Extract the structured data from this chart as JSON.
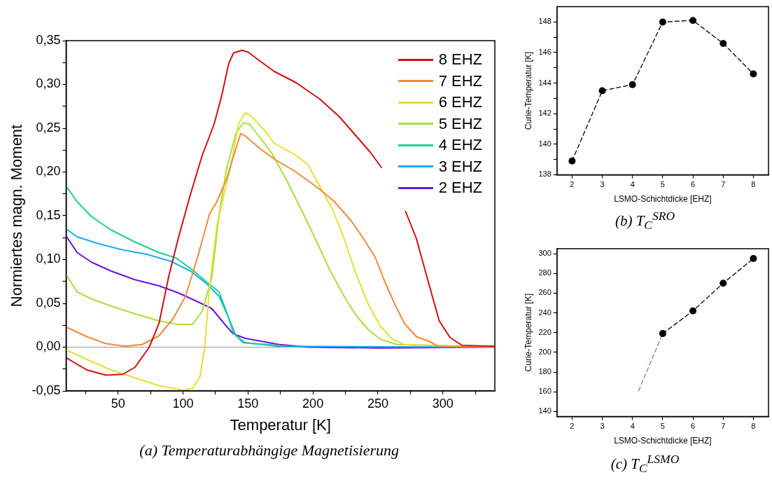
{
  "chart_data": [
    {
      "type": "line",
      "title": "(a) Temperaturabhängige Magnetisierung",
      "xlabel": "Temperatur [K]",
      "ylabel": "Normiertes magn. Moment",
      "legend": "top right",
      "marker": "none",
      "grid": false,
      "xlim": [
        10,
        340
      ],
      "xticks": [
        {
          "value": 25,
          "label": null
        },
        50,
        {
          "value": 75,
          "label": null
        },
        100,
        {
          "value": 125,
          "label": null
        },
        150,
        {
          "value": 175,
          "label": null
        },
        200,
        {
          "value": 225,
          "label": null
        },
        250,
        {
          "value": 275,
          "label": null
        },
        300,
        {
          "value": 325,
          "label": null
        }
      ],
      "ylim": [
        -0.05,
        0.35
      ],
      "yticks": [
        {
          "value": -0.05,
          "label": "-0,05"
        },
        {
          "value": -0.025,
          "label": null
        },
        {
          "value": 0,
          "label": "0,00"
        },
        {
          "value": 0.025,
          "label": null
        },
        {
          "value": 0.05,
          "label": "0,05"
        },
        {
          "value": 0.075,
          "label": null
        },
        {
          "value": 0.1,
          "label": "0,10"
        },
        {
          "value": 0.125,
          "label": null
        },
        {
          "value": 0.15,
          "label": "0,15"
        },
        {
          "value": 0.175,
          "label": null
        },
        {
          "value": 0.2,
          "label": "0,20"
        },
        {
          "value": 0.225,
          "label": null
        },
        {
          "value": 0.25,
          "label": "0,25"
        },
        {
          "value": 0.275,
          "label": null
        },
        {
          "value": 0.3,
          "label": "0,30"
        },
        {
          "value": 0.325,
          "label": null
        },
        {
          "value": 0.35,
          "label": "0,35"
        }
      ],
      "ref_lines": [
        {
          "axis": "y",
          "value": 0,
          "color": "#999999"
        }
      ],
      "series": [
        {
          "name": "8 EHZ",
          "color": "#d40f0f",
          "x": [
            10,
            25.9,
            40.7,
            53.7,
            63,
            74,
            81.5,
            88.9,
            96.3,
            105.6,
            114.8,
            124,
            129.6,
            135.2,
            138.9,
            145.4,
            150,
            159,
            170,
            187,
            205.5,
            220.4,
            233.3,
            244.4,
            252.8,
            262,
            271.3,
            279.6,
            288.9,
            297.2,
            305.5,
            314.8,
            340
          ],
          "values": [
            -0.012,
            -0.026,
            -0.032,
            -0.031,
            -0.023,
            0,
            0.027,
            0.08,
            0.124,
            0.174,
            0.219,
            0.255,
            0.286,
            0.324,
            0.336,
            0.339,
            0.337,
            0.327,
            0.315,
            0.302,
            0.283,
            0.263,
            0.241,
            0.222,
            0.205,
            null,
            0.155,
            0.124,
            0.074,
            0.03,
            0.011,
            0.002,
            0.001
          ]
        },
        {
          "name": "7 EHZ",
          "color": "#f5883a",
          "x": [
            10,
            25.9,
            40.7,
            55.6,
            68.5,
            81.5,
            92.6,
            101.9,
            111.1,
            120.4,
            126,
            133.3,
            140.7,
            144.4,
            148,
            159,
            170,
            187,
            205.5,
            216.6,
            229.6,
            238.9,
            248.1,
            255.5,
            263,
            270.4,
            279.6,
            288.9,
            296.3,
            340
          ],
          "values": [
            0.023,
            0.012,
            0.004,
            0.001,
            0.003,
            0.013,
            0.033,
            0.058,
            0.102,
            0.152,
            0.166,
            0.191,
            0.227,
            0.244,
            0.241,
            0.227,
            0.215,
            0.2,
            0.18,
            0.166,
            0.144,
            0.124,
            0.102,
            0.074,
            0.049,
            0.027,
            0.012,
            0.007,
            0.001,
            0
          ]
        },
        {
          "name": "6 EHZ",
          "color": "#e6e02e",
          "x": [
            10,
            25.9,
            44.4,
            63,
            81.5,
            100,
            107.4,
            113,
            116.7,
            120.4,
            126,
            131.5,
            137,
            142.6,
            148.1,
            153.7,
            164.8,
            170,
            187,
            196.3,
            205.5,
            214.8,
            224,
            233.3,
            242.6,
            251.8,
            261.1,
            270.4,
            340
          ],
          "values": [
            -0.003,
            -0.014,
            -0.026,
            -0.035,
            -0.044,
            -0.049,
            -0.047,
            -0.034,
            0,
            0.069,
            0.138,
            0.174,
            0.208,
            0.255,
            0.268,
            0.262,
            0.244,
            0.233,
            0.219,
            0.208,
            0.183,
            0.158,
            0.124,
            0.083,
            0.049,
            0.024,
            0.009,
            0.003,
            0
          ]
        },
        {
          "name": "5 EHZ",
          "color": "#a6e03a",
          "x": [
            10,
            18.5,
            29.6,
            44.4,
            63,
            81.5,
            96.3,
            107.4,
            114.8,
            122.2,
            127.8,
            133.3,
            140.7,
            146.3,
            150.9,
            161,
            168.5,
            179.6,
            190.7,
            201.8,
            213,
            224,
            233.3,
            242.6,
            251.8,
            264.8,
            340
          ],
          "values": [
            0.083,
            0.063,
            0.055,
            0.047,
            0.038,
            0.03,
            0.026,
            0.026,
            0.041,
            0.08,
            0.152,
            0.202,
            0.244,
            0.256,
            0.255,
            0.236,
            0.221,
            0.191,
            0.158,
            0.124,
            0.088,
            0.058,
            0.036,
            0.02,
            0.009,
            0.003,
            0
          ]
        },
        {
          "name": "4 EHZ",
          "color": "#1ad38e",
          "x": [
            10,
            18.5,
            29.6,
            44.4,
            63,
            81.5,
            94.4,
            107.4,
            118.5,
            127.8,
            133.3,
            138.9,
            146.3,
            174
          ],
          "values": [
            0.184,
            0.166,
            0.149,
            0.134,
            0.12,
            0.108,
            0.102,
            0.088,
            0.074,
            0.063,
            0.041,
            0.016,
            0.005,
            0.002
          ]
        },
        {
          "name": "3 EHZ",
          "color": "#18aef0",
          "x": [
            10,
            18.5,
            35.2,
            53.7,
            72.2,
            90.7,
            105.6,
            118.5,
            127.8,
            135.2,
            140.7,
            148,
            174,
            340
          ],
          "values": [
            0.135,
            0.126,
            0.118,
            0.111,
            0.106,
            0.098,
            0.087,
            0.072,
            0.058,
            0.033,
            0.013,
            0.005,
            0.001,
            0
          ]
        },
        {
          "name": "2 EHZ",
          "color": "#7012e0",
          "x": [
            10,
            18.5,
            29.6,
            44.4,
            63,
            81.5,
            96.3,
            111.1,
            122.2,
            133.3,
            138.9,
            148,
            174,
            196,
            250,
            340
          ],
          "values": [
            0.127,
            0.108,
            0.097,
            0.087,
            0.077,
            0.07,
            0.062,
            0.052,
            0.044,
            0.024,
            0.015,
            0.01,
            0.003,
            0,
            -0.001,
            0
          ]
        }
      ]
    },
    {
      "type": "line",
      "title": "(b) T$_{C}$$^{SRO}$",
      "xlabel": "LSMO-Schichtdicke [EHZ]",
      "ylabel": "Curie-Temperatur [K]",
      "marker": "circle",
      "line_style": "dashed",
      "xlim": [
        1.5,
        8.5
      ],
      "xticks": [
        2,
        3,
        4,
        5,
        6,
        7,
        8
      ],
      "ylim": [
        138,
        149
      ],
      "yticks": [
        138,
        {
          "value": 139,
          "label": null
        },
        140,
        {
          "value": 141,
          "label": null
        },
        142,
        {
          "value": 143,
          "label": null
        },
        144,
        {
          "value": 145,
          "label": null
        },
        146,
        {
          "value": 147,
          "label": null
        },
        148
      ],
      "series": [
        {
          "color": "#000000",
          "x": [
            2,
            3,
            4,
            5,
            6,
            7,
            8
          ],
          "values": [
            138.9,
            143.5,
            143.9,
            148.0,
            148.1,
            146.6,
            144.6
          ]
        }
      ]
    },
    {
      "type": "line",
      "title": "(c) T$_{C}$$^{LSMO}$",
      "xlabel": "LSMO-Schichtdicke [EHZ]",
      "ylabel": "Curie-Temperatur [K]",
      "line_style": "dashed",
      "xlim": [
        1.5,
        8.5
      ],
      "xticks": [
        2,
        3,
        4,
        5,
        6,
        7,
        8
      ],
      "ylim": [
        135,
        305
      ],
      "yticks": [
        140,
        160,
        180,
        200,
        220,
        240,
        260,
        280,
        300
      ],
      "series": [
        {
          "color": "#000000",
          "marker": "circle",
          "x": [
            5,
            6,
            7,
            8
          ],
          "values": [
            219,
            242,
            270,
            295
          ]
        },
        {
          "color": "#808080",
          "marker": "none",
          "x": [
            4.2,
            5
          ],
          "values": [
            161,
            219
          ]
        }
      ]
    }
  ]
}
